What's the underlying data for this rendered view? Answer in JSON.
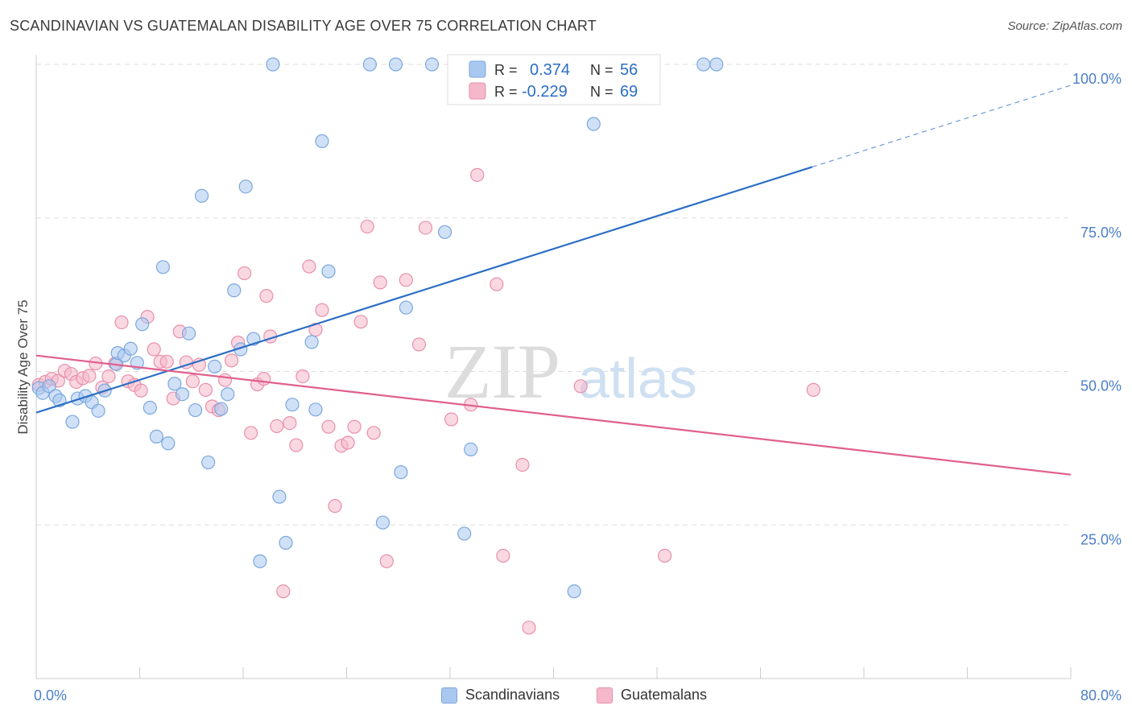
{
  "header": {
    "title": "SCANDINAVIAN VS GUATEMALAN DISABILITY AGE OVER 75 CORRELATION CHART",
    "source": "Source: ZipAtlas.com"
  },
  "watermark": {
    "part1": "ZIP",
    "part2": "atlas"
  },
  "stats_legend": {
    "rows": [
      {
        "r_label": "R =",
        "r_value": "0.374",
        "n_label": "N =",
        "n_value": "56"
      },
      {
        "r_label": "R =",
        "r_value": "-0.229",
        "n_label": "N =",
        "n_value": "69"
      }
    ]
  },
  "bottom_legend": {
    "items": [
      {
        "label": "Scandinavians"
      },
      {
        "label": "Guatemalans"
      }
    ]
  },
  "colors": {
    "blue_fill": "#a9c8f0",
    "blue_stroke": "#7ba7dd",
    "blue_line": "#2b6ec6",
    "pink_fill": "#f5b8cb",
    "pink_stroke": "#e88fab",
    "pink_line": "#e0608e",
    "axis_text": "#4a7fc8",
    "value_text": "#2b6ec6",
    "grid": "#dddddd"
  },
  "chart_data": {
    "type": "scatter",
    "title": "SCANDINAVIAN VS GUATEMALAN DISABILITY AGE OVER 75 CORRELATION CHART",
    "xlabel": "",
    "ylabel": "Disability Age Over 75",
    "xlim": [
      0,
      80
    ],
    "ylim": [
      0,
      100
    ],
    "x_tick_labels": [
      "0.0%",
      "80.0%"
    ],
    "y_ticks": [
      25,
      50,
      75,
      100
    ],
    "y_tick_labels": [
      "25.0%",
      "50.0%",
      "75.0%",
      "100.0%"
    ],
    "grid": true,
    "legend_position": "top-center",
    "series": [
      {
        "name": "Scandinavians",
        "r": 0.374,
        "n": 56,
        "trend": {
          "x0": 0,
          "y0": 43.3,
          "x1": 60,
          "y1": 83.3,
          "dashed_to_x": 80,
          "dashed_to_y": 96.6
        },
        "points": [
          [
            0.2,
            47.3
          ],
          [
            0.5,
            46.5
          ],
          [
            1.0,
            47.6
          ],
          [
            1.5,
            46.0
          ],
          [
            1.8,
            45.3
          ],
          [
            2.8,
            41.8
          ],
          [
            3.2,
            45.6
          ],
          [
            3.8,
            46.0
          ],
          [
            4.3,
            45.0
          ],
          [
            4.8,
            43.6
          ],
          [
            5.3,
            46.9
          ],
          [
            6.2,
            51.2
          ],
          [
            6.3,
            53.0
          ],
          [
            6.8,
            52.6
          ],
          [
            7.3,
            53.7
          ],
          [
            7.8,
            51.4
          ],
          [
            8.2,
            57.7
          ],
          [
            8.8,
            44.1
          ],
          [
            9.3,
            39.4
          ],
          [
            9.8,
            67.0
          ],
          [
            10.2,
            38.3
          ],
          [
            10.7,
            48.0
          ],
          [
            11.3,
            46.3
          ],
          [
            11.8,
            56.2
          ],
          [
            12.3,
            43.7
          ],
          [
            12.8,
            78.6
          ],
          [
            13.3,
            35.2
          ],
          [
            13.8,
            50.8
          ],
          [
            14.3,
            43.9
          ],
          [
            14.8,
            46.3
          ],
          [
            15.3,
            63.2
          ],
          [
            15.8,
            53.6
          ],
          [
            16.2,
            80.1
          ],
          [
            16.8,
            55.3
          ],
          [
            17.3,
            19.1
          ],
          [
            18.3,
            100.0
          ],
          [
            18.8,
            29.6
          ],
          [
            19.3,
            22.1
          ],
          [
            19.8,
            44.6
          ],
          [
            21.3,
            54.8
          ],
          [
            21.6,
            43.8
          ],
          [
            22.1,
            87.5
          ],
          [
            22.6,
            66.3
          ],
          [
            25.8,
            100.0
          ],
          [
            26.8,
            25.4
          ],
          [
            27.8,
            100.0
          ],
          [
            28.2,
            33.6
          ],
          [
            28.6,
            60.4
          ],
          [
            30.6,
            100.0
          ],
          [
            31.6,
            72.7
          ],
          [
            33.1,
            23.6
          ],
          [
            33.6,
            37.3
          ],
          [
            41.6,
            14.2
          ],
          [
            43.1,
            90.3
          ],
          [
            51.6,
            100.0
          ],
          [
            52.6,
            100.0
          ]
        ]
      },
      {
        "name": "Guatemalans",
        "r": -0.229,
        "n": 69,
        "trend": {
          "x0": 0,
          "y0": 52.6,
          "x1": 80,
          "y1": 33.2
        },
        "points": [
          [
            0.2,
            47.8
          ],
          [
            0.7,
            48.3
          ],
          [
            1.2,
            48.8
          ],
          [
            1.7,
            48.5
          ],
          [
            2.2,
            50.1
          ],
          [
            2.7,
            49.6
          ],
          [
            3.1,
            48.3
          ],
          [
            3.6,
            48.9
          ],
          [
            4.1,
            49.3
          ],
          [
            4.6,
            51.3
          ],
          [
            5.1,
            47.4
          ],
          [
            5.6,
            49.2
          ],
          [
            6.1,
            51.3
          ],
          [
            6.6,
            58.0
          ],
          [
            7.1,
            48.4
          ],
          [
            7.6,
            47.8
          ],
          [
            8.1,
            46.9
          ],
          [
            8.6,
            58.9
          ],
          [
            9.1,
            53.6
          ],
          [
            9.6,
            51.6
          ],
          [
            10.1,
            51.6
          ],
          [
            10.6,
            45.6
          ],
          [
            11.1,
            56.5
          ],
          [
            11.6,
            51.5
          ],
          [
            12.1,
            48.4
          ],
          [
            12.6,
            51.1
          ],
          [
            13.1,
            47.0
          ],
          [
            13.6,
            44.3
          ],
          [
            14.1,
            43.7
          ],
          [
            14.6,
            48.6
          ],
          [
            15.1,
            51.8
          ],
          [
            15.6,
            54.7
          ],
          [
            16.1,
            66.0
          ],
          [
            16.6,
            40.0
          ],
          [
            17.1,
            47.9
          ],
          [
            17.6,
            48.8
          ],
          [
            17.8,
            62.3
          ],
          [
            18.1,
            55.7
          ],
          [
            18.6,
            41.1
          ],
          [
            19.1,
            14.2
          ],
          [
            19.6,
            41.6
          ],
          [
            20.1,
            38.0
          ],
          [
            20.6,
            49.2
          ],
          [
            21.1,
            67.1
          ],
          [
            21.6,
            56.8
          ],
          [
            22.1,
            60.0
          ],
          [
            22.6,
            41.0
          ],
          [
            23.1,
            28.1
          ],
          [
            23.6,
            37.9
          ],
          [
            24.1,
            38.4
          ],
          [
            24.6,
            41.0
          ],
          [
            25.1,
            58.1
          ],
          [
            25.6,
            73.6
          ],
          [
            26.1,
            40.0
          ],
          [
            26.6,
            64.5
          ],
          [
            27.1,
            19.1
          ],
          [
            28.6,
            64.9
          ],
          [
            29.6,
            54.4
          ],
          [
            30.1,
            73.4
          ],
          [
            32.1,
            42.2
          ],
          [
            33.6,
            44.6
          ],
          [
            34.1,
            82.0
          ],
          [
            35.6,
            64.2
          ],
          [
            36.1,
            20.0
          ],
          [
            37.6,
            34.8
          ],
          [
            38.1,
            8.3
          ],
          [
            42.1,
            47.6
          ],
          [
            48.6,
            20.0
          ],
          [
            60.1,
            47.0
          ]
        ]
      }
    ]
  }
}
